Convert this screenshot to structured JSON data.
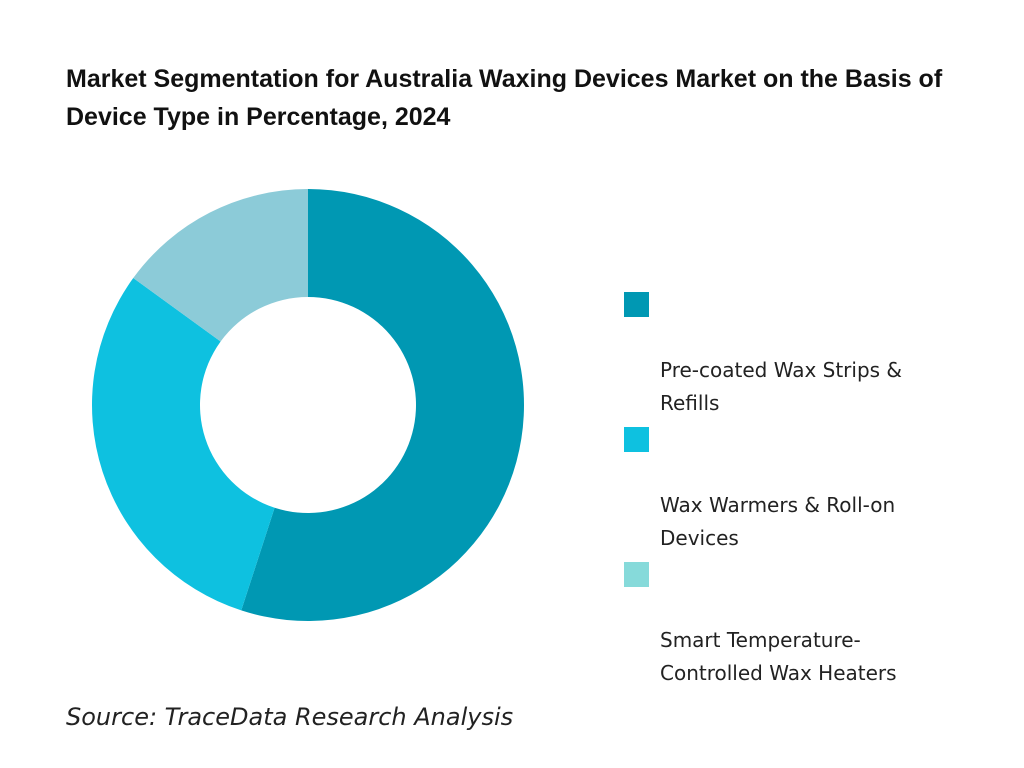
{
  "chart_data": {
    "type": "pie",
    "donut": true,
    "title": "Market Segmentation for Australia Waxing Devices Market on the Basis of Device Type in Percentage, 2024",
    "categories": [
      "Pre-coated Wax Strips & Refills",
      "Wax Warmers & Roll-on Devices",
      "Smart Temperature-Controlled Wax Heaters"
    ],
    "values": [
      55,
      30,
      15
    ],
    "colors": [
      "#0098b3",
      "#0ec1e0",
      "#8ccbd8"
    ],
    "legend_colors": [
      "#0098b3",
      "#0ec1e0",
      "#86dada"
    ],
    "legend_position": "right",
    "legend_labels": [
      "Pre-coated Wax Strips &\nRefills",
      "Wax Warmers & Roll-on\nDevices",
      "Smart Temperature-\nControlled Wax Heaters"
    ]
  },
  "source": "Source: TraceData Research Analysis"
}
